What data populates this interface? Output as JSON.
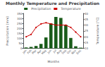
{
  "chart_data": {
    "type": "bar",
    "title": "Monthly Temperature and Precipitation",
    "categories": [
      "Jan",
      "Feb",
      "Mar",
      "Apr",
      "May",
      "Jun",
      "Jul",
      "Aug",
      "Sep",
      "Oct",
      "Nov",
      "Dec"
    ],
    "series": [
      {
        "name": "Precipitation",
        "type": "bar",
        "color": "#1a5c1a",
        "values": [
          10,
          15,
          25,
          45,
          110,
          250,
          315,
          305,
          235,
          105,
          22,
          8
        ]
      },
      {
        "name": "Temperature",
        "type": "line",
        "color": "#cc0000",
        "marker": "circle",
        "axis": "y2",
        "values": [
          20,
          22,
          28,
          31,
          32,
          31,
          30,
          30,
          30,
          28,
          24,
          20
        ]
      }
    ],
    "xlabel": "Months",
    "ylabel": "Precipitation (mm)",
    "y2label": "Temperature (°C)",
    "ylim": [
      0,
      350
    ],
    "yticks": [
      0,
      50,
      100,
      150,
      200,
      250,
      300,
      350
    ],
    "y2lim": [
      10,
      40
    ],
    "y2ticks": [
      10,
      15,
      20,
      25,
      30,
      35,
      40
    ],
    "grid": false,
    "legend": "top"
  }
}
